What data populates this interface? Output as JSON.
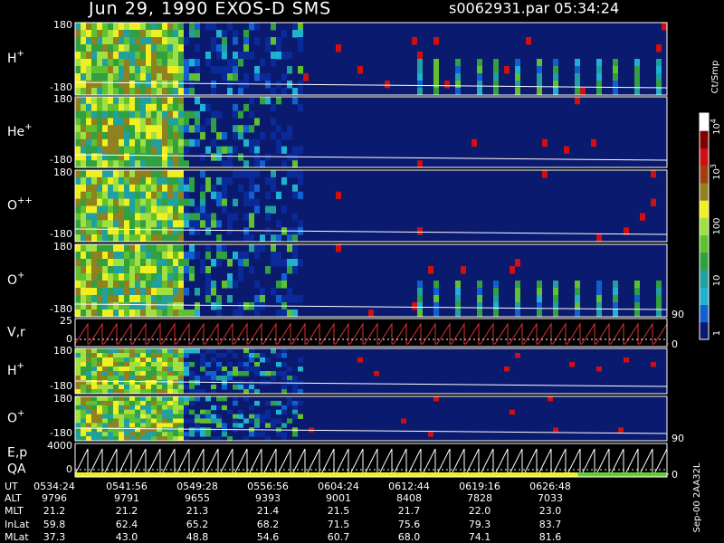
{
  "header": {
    "title": "Jun 29, 1990   EXOS-D SMS",
    "file": "s0062931.par  05:34:24"
  },
  "panels": [
    {
      "name": "H",
      "sup": "+",
      "top": "180",
      "bottom": "-180"
    },
    {
      "name": "He",
      "sup": "+",
      "top": "180",
      "bottom": "-180"
    },
    {
      "name": "O",
      "sup": "++",
      "top": "180",
      "bottom": "-180"
    },
    {
      "name": "O",
      "sup": "+",
      "top": "180",
      "bottom": "-180",
      "right": "90"
    },
    {
      "name": "V,r",
      "top": "25",
      "bottom": "0",
      "right": "0"
    },
    {
      "name": "H",
      "sup": "+",
      "top": "180",
      "bottom": "-180"
    },
    {
      "name": "O",
      "sup": "+",
      "top": "180",
      "bottom": "-180",
      "right": "90"
    },
    {
      "name": "E,p",
      "name2": "QA",
      "top": "4000",
      "bottom": "0",
      "right": "0"
    }
  ],
  "colorbar": {
    "unit": "Ct/Smp",
    "labels": [
      {
        "base": "10",
        "exp": "4"
      },
      {
        "base": "10",
        "exp": "3"
      },
      {
        "base": "100"
      },
      {
        "base": "10"
      },
      {
        "base": "1"
      }
    ]
  },
  "footer": {
    "rows": [
      [
        "UT",
        "0534:24",
        "0541:56",
        "0549:28",
        "0556:56",
        "0604:24",
        "0612:44",
        "0619:16",
        "0626:48"
      ],
      [
        "ALT",
        "9796",
        "9791",
        "9655",
        "9393",
        "9001",
        "8408",
        "7828",
        "7033"
      ],
      [
        "MLT",
        "21.2",
        "21.2",
        "21.3",
        "21.4",
        "21.5",
        "21.7",
        "22.0",
        "23.0"
      ],
      [
        "InLat",
        "59.8",
        "62.4",
        "65.2",
        "68.2",
        "71.5",
        "75.6",
        "79.3",
        "83.7"
      ],
      [
        "MLat",
        "37.3",
        "43.0",
        "48.8",
        "54.6",
        "60.7",
        "68.0",
        "74.1",
        "81.6"
      ]
    ],
    "stamp": "Sep-00 2AA32L"
  }
}
